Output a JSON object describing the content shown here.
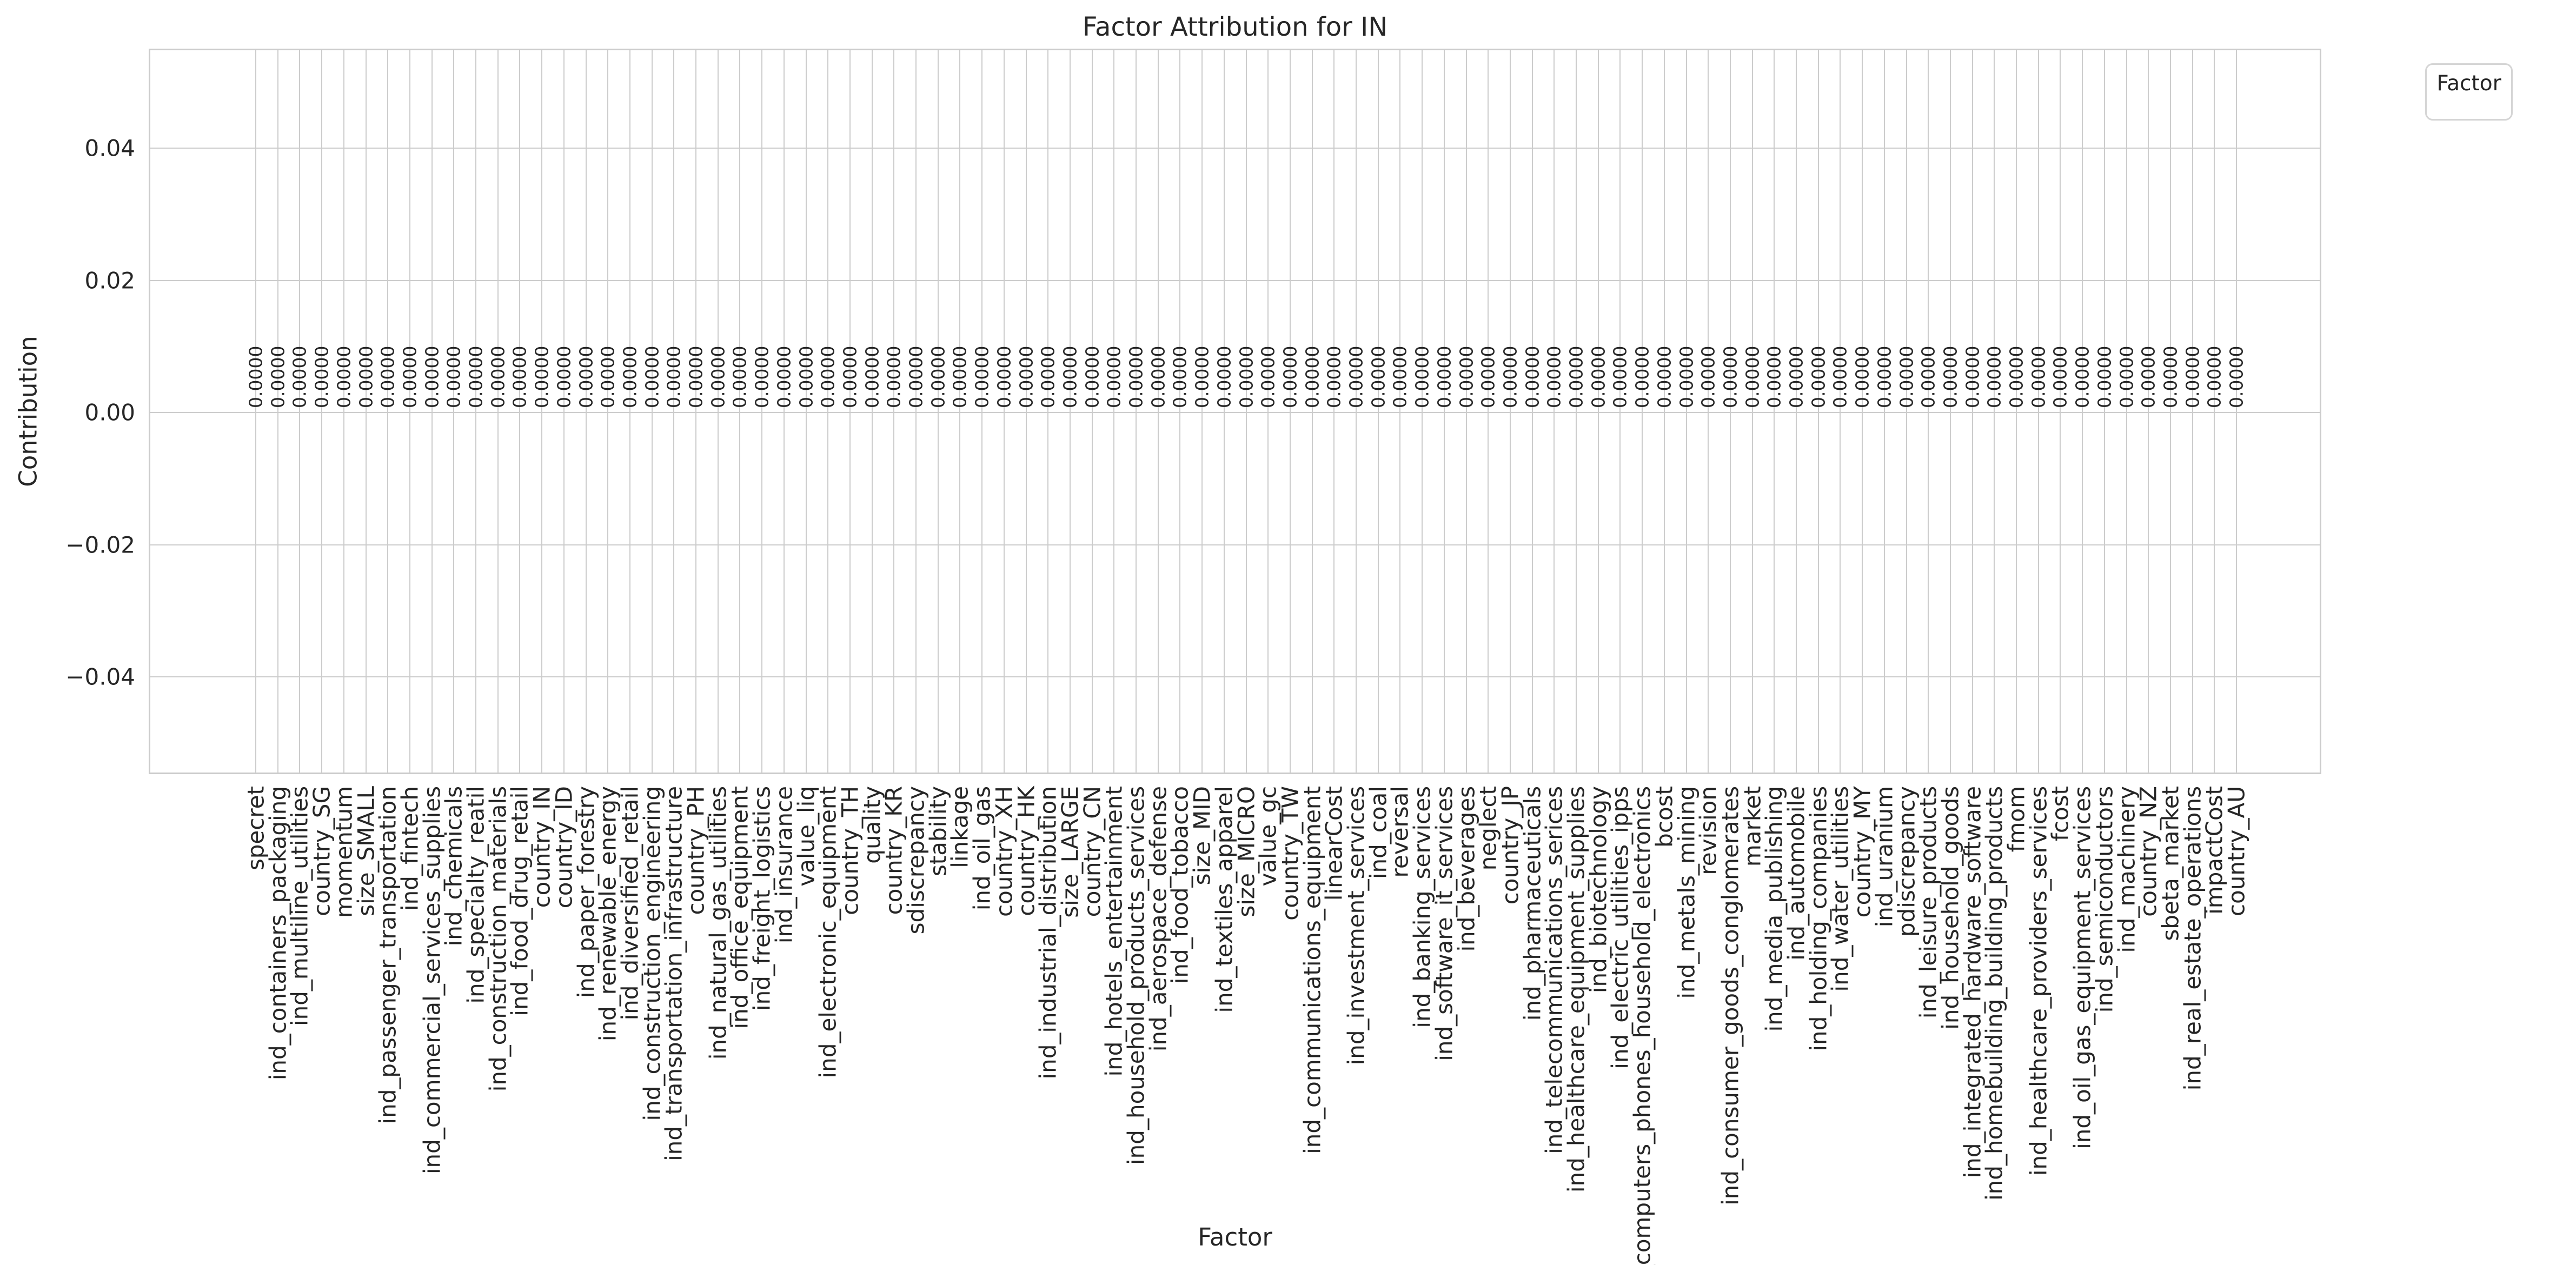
{
  "chart_data": {
    "type": "bar",
    "title": "Factor Attribution for IN",
    "xlabel": "Factor",
    "ylabel": "Contribution",
    "legend": {
      "title": "Factor",
      "position": "upper right, outside plot"
    },
    "grid": true,
    "ylim": [
      -0.055,
      0.055
    ],
    "yticks": [
      0.04,
      0.02,
      0.0,
      -0.02,
      -0.04
    ],
    "value_label_format": "0.0000",
    "colors": {
      "text": "#262626",
      "grid": "#cccccc",
      "background": "#ffffff"
    },
    "categories": [
      "specret",
      "ind_containers_packaging",
      "ind_multiline_utilities",
      "country_SG",
      "momentum",
      "size_SMALL",
      "ind_passenger_transportation",
      "ind_fintech",
      "ind_commercial_services_supplies",
      "ind_chemicals",
      "ind_specialty_reatil",
      "ind_construction_materials",
      "ind_food_drug_retail",
      "country_IN",
      "country_ID",
      "ind_paper_forestry",
      "ind_renewable_energy",
      "ind_diversified_retail",
      "ind_construction_engineering",
      "ind_transportation_infrastructure",
      "country_PH",
      "ind_natural_gas_utilities",
      "ind_office_equipment",
      "ind_freight_logistics",
      "ind_insurance",
      "value_liq",
      "ind_electronic_equipment",
      "country_TH",
      "quality",
      "country_KR",
      "sdiscrepancy",
      "stability",
      "linkage",
      "ind_oil_gas",
      "country_XH",
      "country_HK",
      "ind_industrial_distribution",
      "size_LARGE",
      "country_CN",
      "ind_hotels_entertainment",
      "ind_household_products_services",
      "ind_aerospace_defense",
      "ind_food_tobacco",
      "size_MID",
      "ind_textiles_apparel",
      "size_MICRO",
      "value_gc",
      "country_TW",
      "ind_communications_equipment",
      "linearCost",
      "ind_investment_services",
      "ind_coal",
      "reversal",
      "ind_banking_services",
      "ind_software_it_services",
      "ind_beverages",
      "neglect",
      "country_JP",
      "ind_pharmaceuticals",
      "ind_telecommunications_serices",
      "ind_healthcare_equipment_supplies",
      "ind_biotechnology",
      "ind_electric_utilities_ipps",
      "ind_computers_phones_household_electronics",
      "bcost",
      "ind_metals_mining",
      "revision",
      "ind_consumer_goods_conglomerates",
      "market",
      "ind_media_publishing",
      "ind_automobile",
      "ind_holding_companies",
      "ind_water_utilities",
      "country_MY",
      "ind_uranium",
      "pdiscrepancy",
      "ind_leisure_products",
      "ind_household_goods",
      "ind_integrated_hardware_software",
      "ind_homebuilding_building_products",
      "fmom",
      "ind_healthcare_providers_services",
      "fcost",
      "ind_oil_gas_equipment_services",
      "ind_semiconductors",
      "ind_machinery",
      "country_NZ",
      "sbeta_market",
      "ind_real_estate_operations",
      "impactCost",
      "country_AU"
    ],
    "values": [
      0,
      0,
      0,
      0,
      0,
      0,
      0,
      0,
      0,
      0,
      0,
      0,
      0,
      0,
      0,
      0,
      0,
      0,
      0,
      0,
      0,
      0,
      0,
      0,
      0,
      0,
      0,
      0,
      0,
      0,
      0,
      0,
      0,
      0,
      0,
      0,
      0,
      0,
      0,
      0,
      0,
      0,
      0,
      0,
      0,
      0,
      0,
      0,
      0,
      0,
      0,
      0,
      0,
      0,
      0,
      0,
      0,
      0,
      0,
      0,
      0,
      0,
      0,
      0,
      0,
      0,
      0,
      0,
      0,
      0,
      0,
      0,
      0,
      0,
      0,
      0,
      0,
      0,
      0,
      0,
      0,
      0,
      0,
      0,
      0,
      0,
      0,
      0,
      0,
      0,
      0
    ]
  }
}
